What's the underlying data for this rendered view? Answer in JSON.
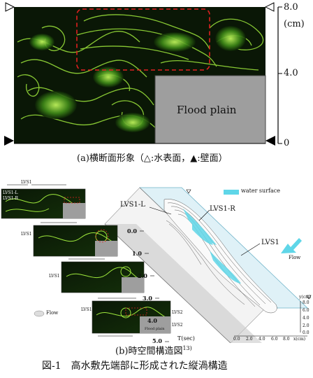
{
  "figure_a": {
    "label_flood_plain": "Flood plain",
    "scale_top": "8.0",
    "scale_unit": "(cm)",
    "scale_mid": "4.0",
    "scale_zero": "0",
    "caption": "(a)横断面形象（△:水表面，▲:壁面）"
  },
  "figure_b": {
    "legend_water_surface": "water surface",
    "lvs1_l": "LVS1-L",
    "lvs1_r": "LVS1-R",
    "lvs1": "LVS1",
    "flow": "Flow",
    "t_axis_label": "T(sec)",
    "t_ticks": [
      "0.0",
      "1.0",
      "2.0",
      "3.0",
      "4.0",
      "5.0"
    ],
    "x_axis_label": "x(cm)",
    "x_ticks": [
      "0.0",
      "2.0",
      "4.0",
      "6.0",
      "8.0"
    ],
    "y_axis_label": "y(cm)",
    "y_ticks": [
      "8.0",
      "6.0",
      "4.0",
      "2.0",
      "0.0"
    ],
    "inset_labels": {
      "inset1_a": "LVS1-L",
      "inset1_b": "LVS1-R",
      "inset1_c": "LVS1",
      "inset2_a": "LVS1",
      "inset3_a": "LVS1",
      "inset4_a": "LVS1",
      "inset4_b": "LVS2",
      "inset4_c": "Flood plain",
      "inset4_d": "LVS2"
    },
    "flow_small": "Flow",
    "caption": "(b)時空間構造図",
    "caption_sup": "13)"
  },
  "figure_caption": "図-1　高水敷先端部に形成された縦渦構造"
}
